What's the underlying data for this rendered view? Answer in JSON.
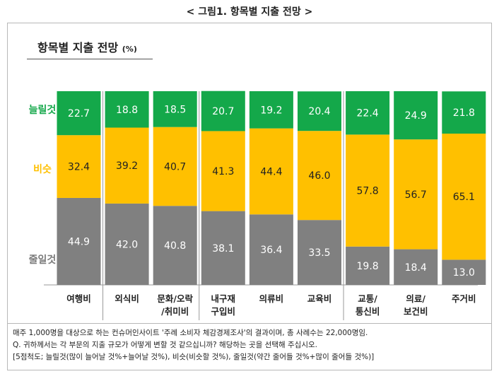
{
  "figure_title": "< 그림1. 항목별 지출 전망 >",
  "chart_data": {
    "type": "bar",
    "stacked": true,
    "percent_stacked": true,
    "title": "항목별 지출 전망",
    "unit_label": "(%)",
    "categories": [
      [
        "여행비"
      ],
      [
        "외식비"
      ],
      [
        "문화/오락",
        "/취미비"
      ],
      [
        "내구재",
        "구입비"
      ],
      [
        "의류비"
      ],
      [
        "교육비"
      ],
      [
        "교통/",
        "통신비"
      ],
      [
        "의료/",
        "보건비"
      ],
      [
        "주거비"
      ]
    ],
    "series": [
      {
        "name": "줄일것",
        "color": "#808080",
        "label_color": "#ffffff",
        "values": [
          44.9,
          42.0,
          40.8,
          38.1,
          36.4,
          33.5,
          19.8,
          18.4,
          13.0
        ]
      },
      {
        "name": "비슷",
        "color": "#ffc000",
        "label_color": "#222222",
        "values": [
          32.4,
          39.2,
          40.7,
          41.3,
          44.4,
          46.0,
          57.8,
          56.7,
          65.1
        ]
      },
      {
        "name": "늘릴것",
        "color": "#14a84a",
        "label_color": "#ffffff",
        "values": [
          22.7,
          18.8,
          18.5,
          20.7,
          19.2,
          20.4,
          22.4,
          24.9,
          21.8
        ]
      }
    ],
    "ylim": [
      0,
      100
    ],
    "grid": false,
    "legend_placement": "left",
    "group_separators_after": [
      0,
      2,
      5
    ]
  },
  "notes": [
    "매주 1,000명을 대상으로 하는 컨슈머인사이트 '주례 소비자 체감경제조사'의 결과이며, 총 사례수는 22,000명임.",
    "Q. 귀하께서는 각 부문의 지출 규모가 어떻게 변할 것 같으십니까? 해당하는 곳을 선택해 주십시오.",
    "[5점척도; 늘릴것(많이 늘어날 것%+늘어날 것%), 비슷(비슷할 것%), 줄일것(약간 줄어들 것%+많이 줄어들 것%)]"
  ]
}
